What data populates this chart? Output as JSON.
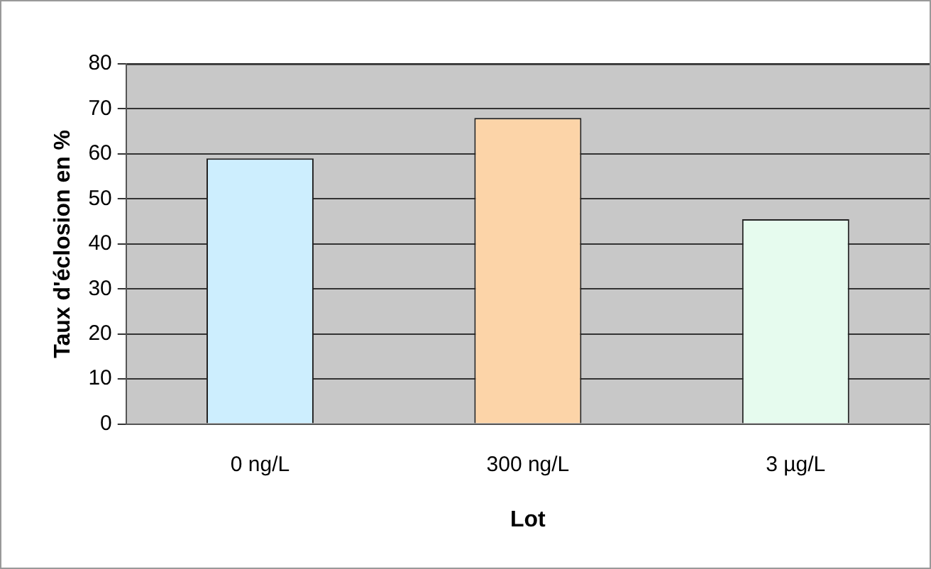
{
  "chart_data": {
    "type": "bar",
    "xlabel": "Lot",
    "ylabel": "Taux d'éclosion en %",
    "categories": [
      "0 ng/L",
      "300 ng/L",
      "3 µg/L"
    ],
    "values": [
      59,
      68,
      45.5
    ],
    "colors": [
      "#cdeefe",
      "#fcd4a8",
      "#e6fbee"
    ],
    "ylim": [
      0,
      80
    ],
    "yticks": [
      0,
      10,
      20,
      30,
      40,
      50,
      60,
      70,
      80
    ],
    "grid": "y",
    "legend": false
  }
}
